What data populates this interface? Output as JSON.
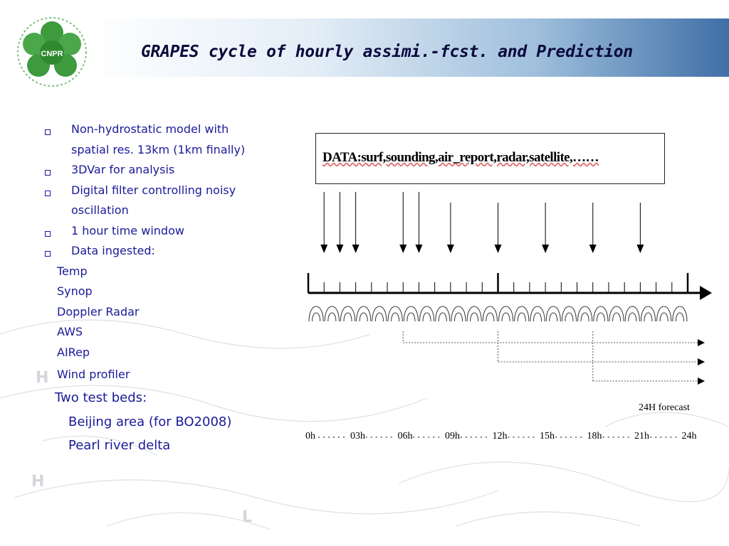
{
  "header": {
    "title": "GRAPES cycle of hourly assimi.-fcst. and Prediction",
    "logo_text": "CNPR"
  },
  "left": {
    "bullets": [
      {
        "lines": [
          "Non-hydrostatic model with",
          "spatial res. 13km (1km finally)"
        ]
      },
      {
        "lines": [
          "3DVar for analysis"
        ]
      },
      {
        "lines": [
          "Digital filter controlling noisy",
          "oscillation"
        ]
      },
      {
        "lines": [
          "1 hour time window"
        ]
      },
      {
        "lines": [
          "Data ingested:"
        ]
      }
    ],
    "data_types": [
      "Temp",
      "Synop",
      "Doppler Radar",
      "AWS",
      "AIRep",
      "Wind profiler"
    ],
    "test_beds_title": "Two test beds:",
    "test_beds": [
      "Beijing area (for BO2008)",
      "Pearl river delta"
    ]
  },
  "diagram": {
    "data_label": "DATA:surf,sounding,air_report,radar,satellite,……",
    "forecast_label": "24H forecast",
    "time_labels": [
      "0h",
      "03h",
      "06h",
      "09h",
      "12h",
      "15h",
      "18h",
      "21h",
      "24h"
    ],
    "forecast_starts": [
      "06h",
      "12h",
      "18h"
    ],
    "data_arrivals": [
      1,
      2,
      3,
      6,
      7,
      9,
      12,
      15,
      18,
      21
    ]
  },
  "colors": {
    "text": "#1a1a99",
    "title": "#0a0a3c",
    "logo": "#3d9a3d"
  }
}
